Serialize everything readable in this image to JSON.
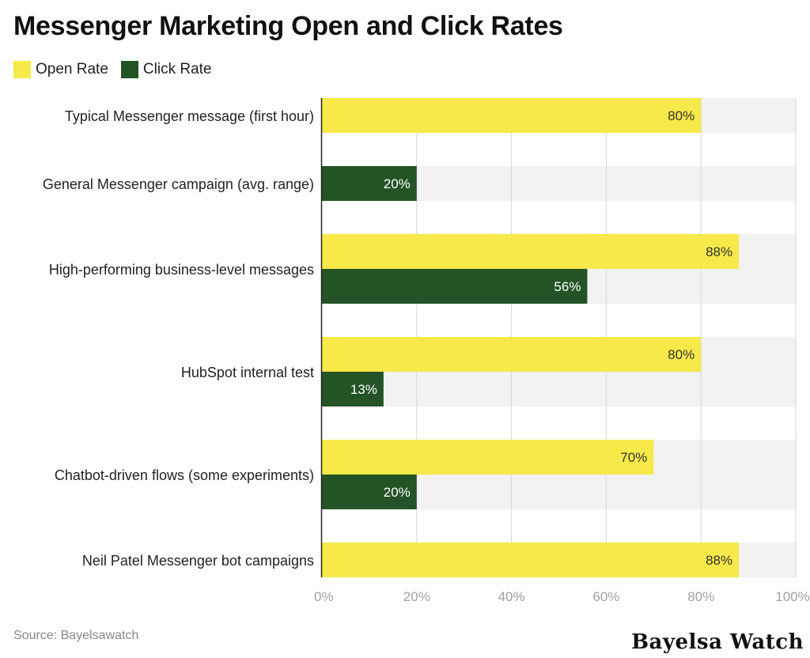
{
  "title": "Messenger Marketing Open and Click Rates",
  "source": "Source: Bayelsawatch",
  "brand": "Bayelsa Watch",
  "legend": [
    {
      "label": "Open Rate",
      "color": "#f7e94a"
    },
    {
      "label": "Click Rate",
      "color": "#245426"
    }
  ],
  "chart_data": {
    "type": "bar",
    "orientation": "horizontal",
    "categories": [
      "Typical Messenger message (first hour)",
      "General Messenger campaign (avg. range)",
      "High-performing business-level messages",
      "HubSpot internal test",
      "Chatbot-driven flows (some experiments)",
      "Neil Patel Messenger bot campaigns"
    ],
    "series": [
      {
        "name": "Open Rate",
        "color": "#f7e94a",
        "values": [
          80,
          null,
          88,
          80,
          70,
          88
        ]
      },
      {
        "name": "Click Rate",
        "color": "#245426",
        "values": [
          null,
          20,
          56,
          13,
          20,
          null
        ]
      }
    ],
    "xlim": [
      0,
      100
    ],
    "xticks": [
      "0%",
      "20%",
      "40%",
      "60%",
      "80%",
      "100%"
    ],
    "value_suffix": "%",
    "grid": true,
    "legend_position": "top-left"
  }
}
